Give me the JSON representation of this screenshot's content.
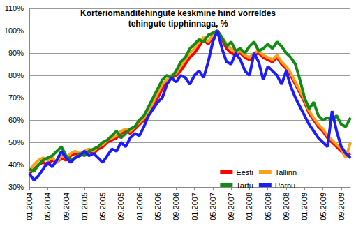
{
  "chart_data": {
    "type": "line",
    "title": "Korteriomanditehingute keskmine hind võrreldes\ntehingute tipphinnaga, %",
    "categories": [
      "01.2004",
      null,
      null,
      null,
      "05.2004",
      null,
      null,
      null,
      "09.2004",
      null,
      null,
      null,
      "01.2005",
      null,
      null,
      null,
      "05.2005",
      null,
      null,
      null,
      "09.2005",
      null,
      null,
      null,
      "01.2006",
      null,
      null,
      null,
      "05.2006",
      null,
      null,
      null,
      "09.2006",
      null,
      null,
      null,
      "01.2007",
      null,
      null,
      null,
      "05.2007",
      null,
      null,
      null,
      "09.2007",
      null,
      null,
      null,
      "01.2008",
      null,
      null,
      null,
      "05.2008",
      null,
      null,
      null,
      "09.2008",
      null,
      null,
      null,
      "01.2009",
      null,
      null,
      null,
      "05.2009",
      null,
      null,
      null,
      "09.2009",
      null,
      null
    ],
    "series": [
      {
        "name": "Eesti",
        "color": "#ff0000",
        "values": [
          36,
          38,
          40,
          41,
          40,
          42,
          41,
          43,
          42,
          44,
          45,
          44,
          45,
          46,
          45,
          47,
          48,
          50,
          51,
          52,
          54,
          55,
          54,
          56,
          58,
          60,
          63,
          67,
          70,
          74,
          77,
          79,
          80,
          82,
          85,
          88,
          90,
          93,
          96,
          94,
          97,
          100,
          96,
          92,
          90,
          89,
          90,
          88,
          87,
          89,
          90,
          88,
          87,
          86,
          88,
          85,
          83,
          80,
          76,
          72,
          68,
          63,
          60,
          57,
          55,
          52,
          50,
          48,
          46,
          44,
          45
        ]
      },
      {
        "name": "Tallinn",
        "color": "#f7a21b",
        "values": [
          37,
          40,
          42,
          43,
          42,
          43,
          41,
          44,
          43,
          45,
          46,
          45,
          46,
          47,
          46,
          48,
          49,
          51,
          52,
          53,
          55,
          56,
          55,
          57,
          59,
          61,
          64,
          68,
          72,
          76,
          78,
          80,
          81,
          84,
          87,
          90,
          92,
          95,
          97,
          95,
          98,
          100,
          97,
          94,
          92,
          90,
          91,
          89,
          88,
          90,
          91,
          89,
          88,
          87,
          89,
          86,
          84,
          81,
          77,
          73,
          69,
          64,
          61,
          58,
          56,
          53,
          51,
          49,
          47,
          43,
          50
        ]
      },
      {
        "name": "Tartu",
        "color": "#138a13",
        "values": [
          38,
          37,
          40,
          42,
          43,
          44,
          46,
          48,
          44,
          42,
          43,
          45,
          44,
          46,
          47,
          48,
          50,
          51,
          53,
          55,
          52,
          54,
          56,
          57,
          60,
          62,
          66,
          70,
          74,
          78,
          80,
          79,
          82,
          86,
          88,
          92,
          94,
          96,
          95,
          98,
          99,
          100,
          97,
          93,
          95,
          91,
          92,
          90,
          93,
          95,
          91,
          92,
          94,
          92,
          95,
          93,
          90,
          88,
          85,
          78,
          70,
          65,
          68,
          62,
          60,
          61,
          60,
          62,
          58,
          57,
          61
        ]
      },
      {
        "name": "Pärnu",
        "color": "#1c1cff",
        "values": [
          36,
          33,
          35,
          38,
          41,
          39,
          42,
          46,
          43,
          41,
          43,
          44,
          46,
          44,
          45,
          43,
          41,
          44,
          47,
          46,
          50,
          48,
          52,
          54,
          53,
          57,
          62,
          65,
          68,
          70,
          76,
          79,
          77,
          80,
          79,
          76,
          80,
          82,
          79,
          86,
          95,
          100,
          92,
          86,
          85,
          90,
          87,
          82,
          80,
          90,
          86,
          78,
          84,
          82,
          80,
          76,
          82,
          75,
          70,
          66,
          62,
          58,
          55,
          52,
          50,
          48,
          64,
          55,
          48,
          45,
          43
        ]
      }
    ],
    "ylim": [
      30,
      110
    ],
    "yticks": [
      {
        "value": 30,
        "label": "30%"
      },
      {
        "value": 40,
        "label": "40%"
      },
      {
        "value": 50,
        "label": "50%"
      },
      {
        "value": 60,
        "label": "60%"
      },
      {
        "value": 70,
        "label": "70%"
      },
      {
        "value": 80,
        "label": "80%"
      },
      {
        "value": 90,
        "label": "90%"
      },
      {
        "value": 100,
        "label": "100%"
      },
      {
        "value": 110,
        "label": "110%"
      }
    ],
    "grid": true,
    "legend": "lower right"
  }
}
